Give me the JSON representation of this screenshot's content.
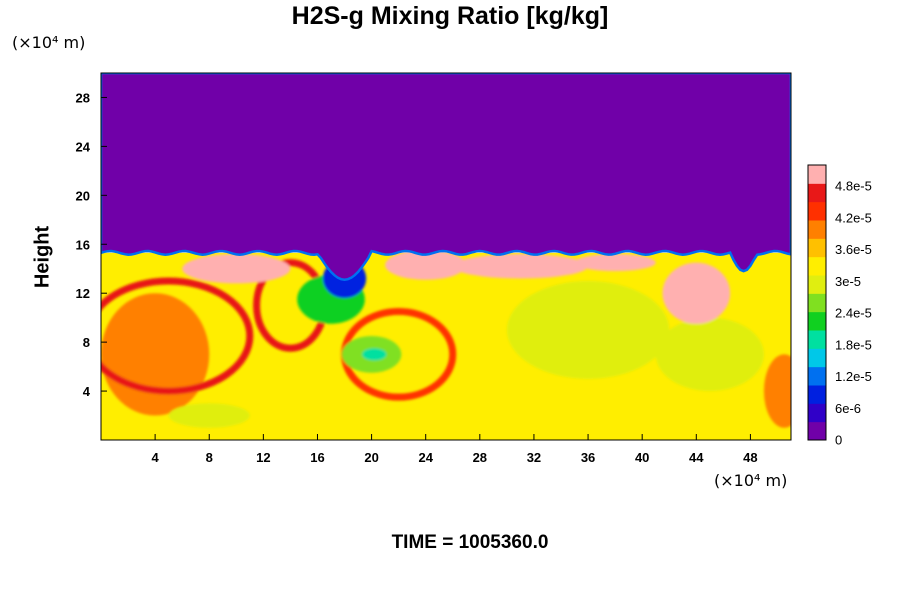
{
  "chart_data": {
    "type": "heatmap",
    "title": "H2S-g Mixing Ratio [kg/kg]",
    "ylabel": "Height",
    "xunit": "(×10⁴ m)",
    "yunit": "(×10⁴ m)",
    "xlim": [
      0,
      51
    ],
    "ylim": [
      0,
      30
    ],
    "x_ticks": [
      4,
      8,
      12,
      16,
      20,
      24,
      28,
      32,
      36,
      40,
      44,
      48
    ],
    "y_ticks": [
      4,
      8,
      12,
      16,
      20,
      24,
      28
    ],
    "colorbar": {
      "min": 0,
      "max": 5.2e-05,
      "tick_values": [
        0,
        6e-06,
        1.2e-05,
        1.8e-05,
        2.4e-05,
        3e-05,
        3.6e-05,
        4.2e-05,
        4.8e-05
      ],
      "tick_labels": [
        "0",
        "6e-6",
        "1.2e-5",
        "1.8e-5",
        "2.4e-5",
        "3e-5",
        "3.6e-5",
        "4.2e-5",
        "4.8e-5"
      ],
      "colors": [
        "#7000a8",
        "#3000c8",
        "#0020e0",
        "#0070f0",
        "#00c8e8",
        "#00e0a0",
        "#10d020",
        "#80e020",
        "#e0ee10",
        "#ffee00",
        "#ffc000",
        "#ff8000",
        "#ff3000",
        "#e81818",
        "#ffb0b0"
      ]
    },
    "background_value": 3.4e-05,
    "upper_layer_value": 0,
    "tropopause_height": 15.3,
    "features": [
      {
        "kind": "warm-patch",
        "x": 4,
        "y": 7,
        "rx": 4,
        "ry": 5,
        "value": 4e-05
      },
      {
        "kind": "warm-patch",
        "x": 50.5,
        "y": 4,
        "rx": 1.5,
        "ry": 3,
        "value": 4e-05
      },
      {
        "kind": "red-arc",
        "x": 5,
        "y": 8.5,
        "rx": 6,
        "ry": 4.5,
        "value": 4.6e-05
      },
      {
        "kind": "red-swirl",
        "x": 14,
        "y": 11,
        "rx": 2.5,
        "ry": 3.5,
        "value": 4.7e-05
      },
      {
        "kind": "red-swirl",
        "x": 22,
        "y": 7,
        "rx": 4,
        "ry": 3.5,
        "value": 4.5e-05
      },
      {
        "kind": "green-eddy",
        "x": 20,
        "y": 7,
        "rx": 2.2,
        "ry": 1.5,
        "value": 2.6e-05
      },
      {
        "kind": "cyan-core",
        "x": 20.2,
        "y": 7,
        "rx": 0.9,
        "ry": 0.5,
        "value": 1.9e-05
      },
      {
        "kind": "green-eddy",
        "x": 17,
        "y": 11.5,
        "rx": 2.5,
        "ry": 2,
        "value": 2.4e-05
      },
      {
        "kind": "blue-intrusion",
        "x": 18,
        "y": 13.2,
        "rx": 1.6,
        "ry": 1.6,
        "value": 8e-06
      },
      {
        "kind": "green-patch",
        "x": 36,
        "y": 9,
        "rx": 6,
        "ry": 4,
        "value": 3.1e-05
      },
      {
        "kind": "green-patch",
        "x": 45,
        "y": 7,
        "rx": 4,
        "ry": 3,
        "value": 3.1e-05
      },
      {
        "kind": "green-patch",
        "x": 8,
        "y": 2,
        "rx": 3,
        "ry": 1,
        "value": 2.8e-05
      },
      {
        "kind": "pink-blob",
        "x": 10,
        "y": 14,
        "rx": 4,
        "ry": 1.2,
        "value": 5e-05
      },
      {
        "kind": "pink-blob",
        "x": 24,
        "y": 14.3,
        "rx": 3,
        "ry": 1.2,
        "value": 5e-05
      },
      {
        "kind": "pink-blob",
        "x": 31,
        "y": 14.2,
        "rx": 5,
        "ry": 1.0,
        "value": 5e-05
      },
      {
        "kind": "pink-blob",
        "x": 44,
        "y": 12,
        "rx": 2.5,
        "ry": 2.5,
        "value": 5e-05
      },
      {
        "kind": "pink-blob",
        "x": 38,
        "y": 14.5,
        "rx": 3,
        "ry": 0.7,
        "value": 5e-05
      }
    ]
  },
  "footer": {
    "time_label": "TIME = 1005360.0"
  }
}
